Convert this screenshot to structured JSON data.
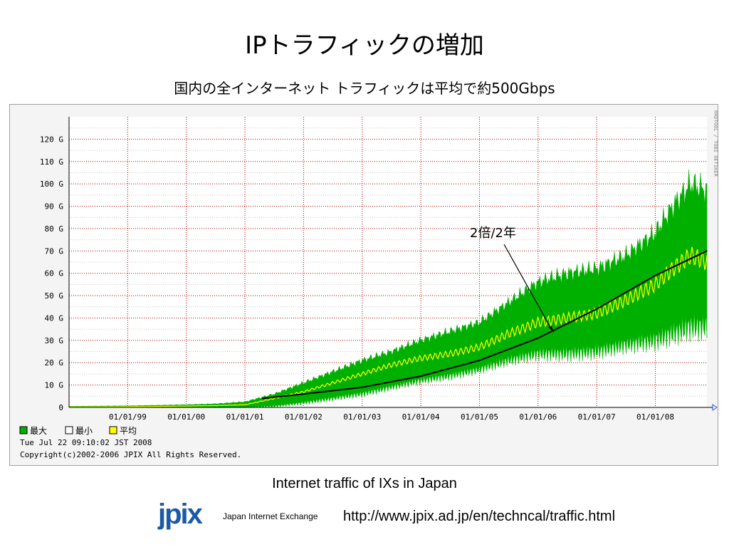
{
  "slide": {
    "title": "IPトラフィックの増加",
    "subtitle": "国内の全インターネット トラフィックは平均で約500Gbps",
    "caption": "Internet traffic of IXs in Japan",
    "logo_text": "jpix",
    "logo_subtext": "Japan Internet Exchange",
    "url": "http://www.jpix.ad.jp/en/techncal/traffic.html"
  },
  "chart_data": {
    "type": "area",
    "title": "",
    "xlabel": "",
    "ylabel": "",
    "ylim": [
      0,
      130
    ],
    "xlim": [
      1998.0,
      2008.88
    ],
    "y_ticks": [
      0,
      10,
      20,
      30,
      40,
      50,
      60,
      70,
      80,
      90,
      100,
      110,
      120
    ],
    "y_tick_labels": [
      "0",
      "10 G",
      "20 G",
      "30 G",
      "40 G",
      "50 G",
      "60 G",
      "70 G",
      "80 G",
      "90 G",
      "100 G",
      "110 G",
      "120 G"
    ],
    "x_ticks": [
      1999,
      2000,
      2001,
      2002,
      2003,
      2004,
      2005,
      2006,
      2007,
      2008
    ],
    "x_tick_labels": [
      "01/01/99",
      "01/01/00",
      "01/01/01",
      "01/01/02",
      "01/01/03",
      "01/01/04",
      "01/01/05",
      "01/01/06",
      "01/01/07",
      "01/01/08"
    ],
    "grid": true,
    "legend_position": "bottom-left",
    "colors": {
      "max": "#00b000",
      "min": "#ffffff",
      "avg": "#ffff00",
      "trend": "#000000",
      "grid": "#b00000",
      "background": "#ffffff"
    },
    "series": [
      {
        "name": "最大",
        "color": "#00b000",
        "x": [
          1998.0,
          1999.0,
          2000.0,
          2000.5,
          2001.0,
          2001.5,
          2002.0,
          2002.5,
          2003.0,
          2003.5,
          2004.0,
          2004.5,
          2005.0,
          2005.5,
          2006.0,
          2006.5,
          2007.0,
          2007.5,
          2008.0,
          2008.3,
          2008.6,
          2008.88
        ],
        "values": [
          0.5,
          0.7,
          1.2,
          1.6,
          2.5,
          6,
          11,
          16,
          21,
          25,
          30,
          34,
          38,
          47,
          56,
          60,
          62,
          68,
          78,
          90,
          100,
          97
        ]
      },
      {
        "name": "最小",
        "color": "#ffffff",
        "x": [
          1998.0,
          1999.0,
          2000.0,
          2000.5,
          2001.0,
          2001.5,
          2002.0,
          2002.5,
          2003.0,
          2003.5,
          2004.0,
          2004.5,
          2005.0,
          2005.5,
          2006.0,
          2006.5,
          2007.0,
          2007.5,
          2008.0,
          2008.3,
          2008.6,
          2008.88
        ],
        "values": [
          0,
          0,
          0,
          0,
          0,
          0.5,
          2,
          4,
          6,
          9,
          12,
          14,
          17,
          21,
          24,
          24,
          25,
          28,
          30,
          33,
          36,
          36
        ]
      },
      {
        "name": "平均",
        "color": "#ffff00",
        "x": [
          1998.0,
          1999.0,
          2000.0,
          2000.5,
          2001.0,
          2001.5,
          2002.0,
          2002.5,
          2003.0,
          2003.5,
          2004.0,
          2004.5,
          2005.0,
          2005.5,
          2006.0,
          2006.5,
          2007.0,
          2007.5,
          2008.0,
          2008.3,
          2008.6,
          2008.88
        ],
        "values": [
          0.2,
          0.3,
          0.6,
          0.8,
          1.2,
          4,
          7,
          11,
          15,
          19,
          22,
          24,
          27,
          33,
          38,
          40,
          42,
          48,
          55,
          62,
          68,
          65
        ]
      },
      {
        "name": "2倍/2年",
        "color": "#000000",
        "x": [
          2001.3,
          2002.0,
          2003.0,
          2004.0,
          2005.0,
          2006.0,
          2007.0,
          2008.0,
          2008.88
        ],
        "values": [
          4,
          6,
          9,
          14,
          21,
          31,
          44,
          59,
          70
        ]
      }
    ],
    "legend": [
      {
        "label": "最大",
        "color": "#00b000"
      },
      {
        "label": "最小",
        "color": "#ffffff"
      },
      {
        "label": "平均",
        "color": "#ffff00"
      }
    ],
    "annotation": "2倍/2年",
    "timestamp": "Tue Jul 22 09:10:02 JST 2008",
    "copyright": "Copyright(c)2002-2006 JPIX All Rights Reserved.",
    "side_label": "RRDTOOL / TOBI OETIKER"
  }
}
